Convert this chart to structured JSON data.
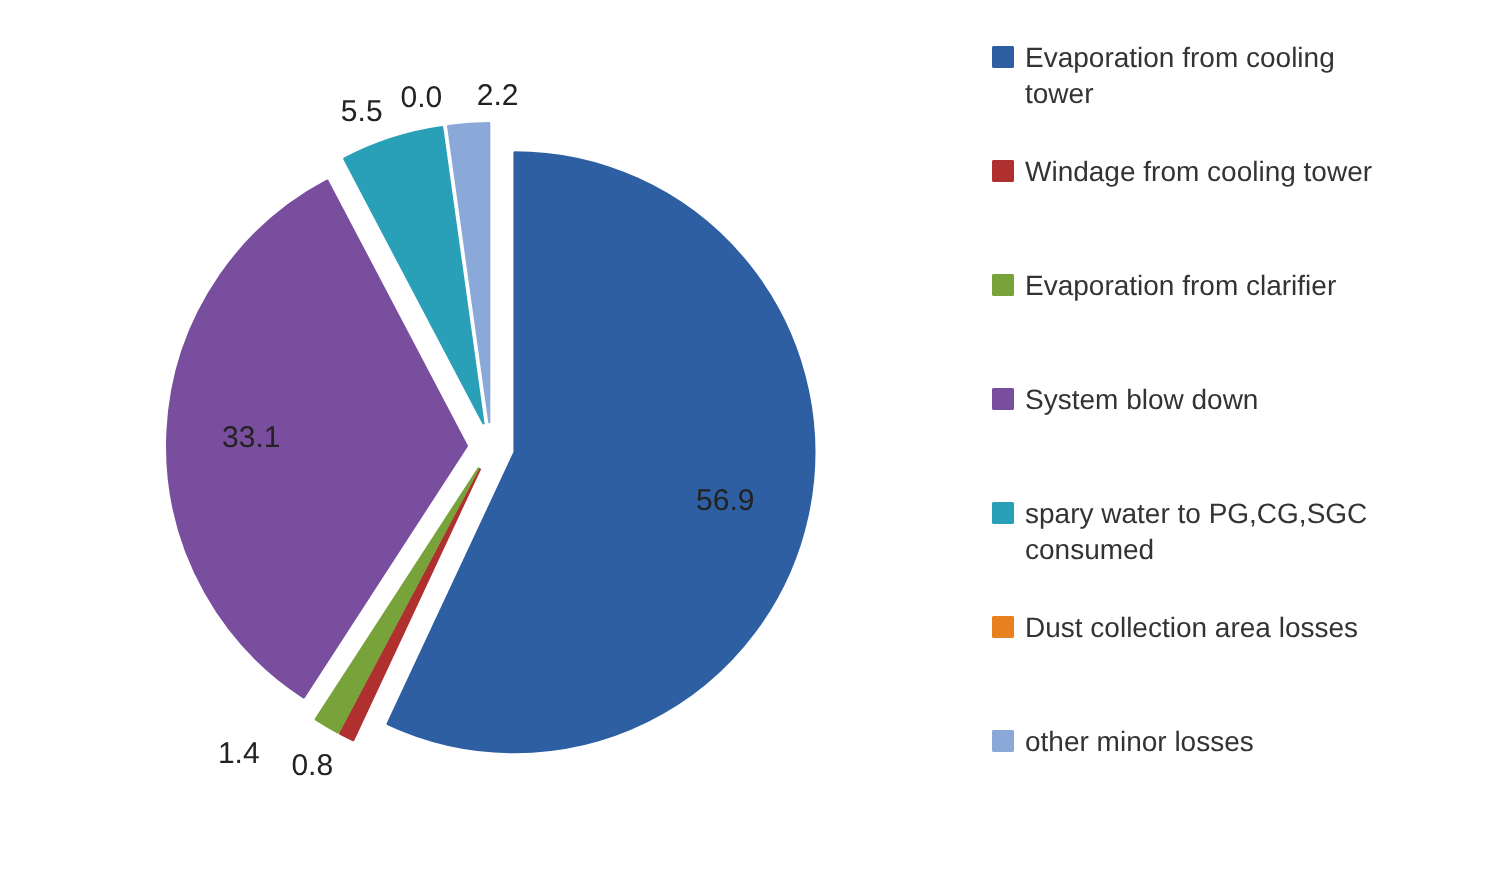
{
  "chart_data": {
    "type": "pie",
    "categories": [
      "Evaporation from cooling tower",
      "Windage from cooling tower",
      "Evaporation from clarifier",
      "System blow down",
      "spary water to PG,CG,SGC consumed",
      "Dust collection area losses",
      "other minor losses"
    ],
    "values": [
      56.9,
      0.8,
      1.4,
      33.1,
      5.5,
      0.0,
      2.2
    ],
    "colors": [
      "#2e5fa3",
      "#b03030",
      "#78a23a",
      "#7a4e9e",
      "#2aa0b8",
      "#e8801e",
      "#8aa8d8"
    ],
    "value_labels": [
      "56.9",
      "0.8",
      "1.4",
      "33.1",
      "5.5",
      "0.0",
      "2.2"
    ],
    "legend": "right"
  }
}
